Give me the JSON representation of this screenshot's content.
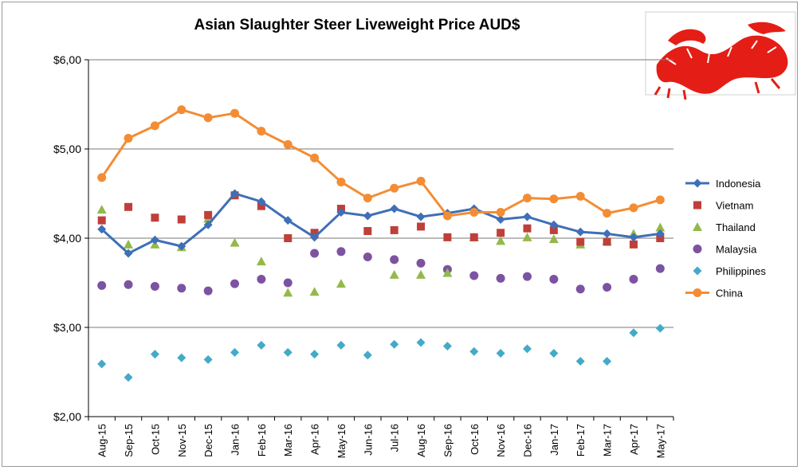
{
  "chart_data": {
    "type": "line",
    "title": "Asian Slaughter Steer Liveweight Price AUD$",
    "xlabel": "",
    "ylabel": "",
    "ylim": [
      2,
      6
    ],
    "yticks": [
      2,
      3,
      4,
      5,
      6
    ],
    "ytick_labels": [
      "$2,00",
      "$3,00",
      "$4,00",
      "$5,00",
      "$6,00"
    ],
    "grid": "horizontal",
    "legend_position": "right",
    "categories": [
      "Aug-15",
      "Sep-15",
      "Oct-15",
      "Nov-15",
      "Dec-15",
      "Jan-16",
      "Feb-16",
      "Mar-16",
      "Apr-16",
      "May-16",
      "Jun-16",
      "Jul-16",
      "Aug-16",
      "Sep-16",
      "Oct-16",
      "Nov-16",
      "Dec-16",
      "Jan-17",
      "Feb-17",
      "Mar-17",
      "Apr-17",
      "May-17"
    ],
    "series": [
      {
        "name": "Indonesia",
        "color": "#3f6fb6",
        "marker": "diamond",
        "line": true,
        "values": [
          4.1,
          3.83,
          3.98,
          3.91,
          4.15,
          4.5,
          4.41,
          4.2,
          4.01,
          4.29,
          4.25,
          4.33,
          4.24,
          4.28,
          4.33,
          4.21,
          4.24,
          4.15,
          4.07,
          4.05,
          4.01,
          4.05
        ]
      },
      {
        "name": "Vietnam",
        "color": "#bf3f3a",
        "marker": "square",
        "line": false,
        "values": [
          4.2,
          4.35,
          4.23,
          4.21,
          4.26,
          4.48,
          4.36,
          4.0,
          4.06,
          4.33,
          4.08,
          4.09,
          4.13,
          4.01,
          4.01,
          4.06,
          4.11,
          4.09,
          3.96,
          3.96,
          3.93,
          4.0
        ]
      },
      {
        "name": "Thailand",
        "color": "#94b94b",
        "marker": "triangle",
        "line": false,
        "values": [
          4.32,
          3.93,
          3.93,
          3.9,
          4.22,
          3.95,
          3.74,
          3.39,
          3.4,
          3.49,
          null,
          3.59,
          3.59,
          3.61,
          4.01,
          3.97,
          4.01,
          3.99,
          3.93,
          3.97,
          4.05,
          4.12
        ]
      },
      {
        "name": "Malaysia",
        "color": "#7c53a1",
        "marker": "circle",
        "line": false,
        "values": [
          3.47,
          3.48,
          3.46,
          3.44,
          3.41,
          3.49,
          3.54,
          3.5,
          3.83,
          3.85,
          3.79,
          3.76,
          3.72,
          3.65,
          3.58,
          3.55,
          3.57,
          3.54,
          3.43,
          3.45,
          3.54,
          3.66
        ]
      },
      {
        "name": "Philippines",
        "color": "#43aac8",
        "marker": "diamond",
        "line": false,
        "values": [
          2.59,
          2.44,
          2.7,
          2.66,
          2.64,
          2.72,
          2.8,
          2.72,
          2.7,
          2.8,
          2.69,
          2.81,
          2.83,
          2.79,
          2.73,
          2.71,
          2.76,
          2.71,
          2.62,
          2.62,
          2.94,
          2.99
        ]
      },
      {
        "name": "China",
        "color": "#f38d34",
        "marker": "circle",
        "line": true,
        "values": [
          4.68,
          5.12,
          5.26,
          5.44,
          5.35,
          5.4,
          5.2,
          5.05,
          4.9,
          4.63,
          4.45,
          4.56,
          4.64,
          4.25,
          4.29,
          4.29,
          4.45,
          4.44,
          4.47,
          4.28,
          4.34,
          4.43
        ]
      }
    ]
  },
  "logo": {
    "name": "red-dragon-logo",
    "color": "#e41e16"
  }
}
